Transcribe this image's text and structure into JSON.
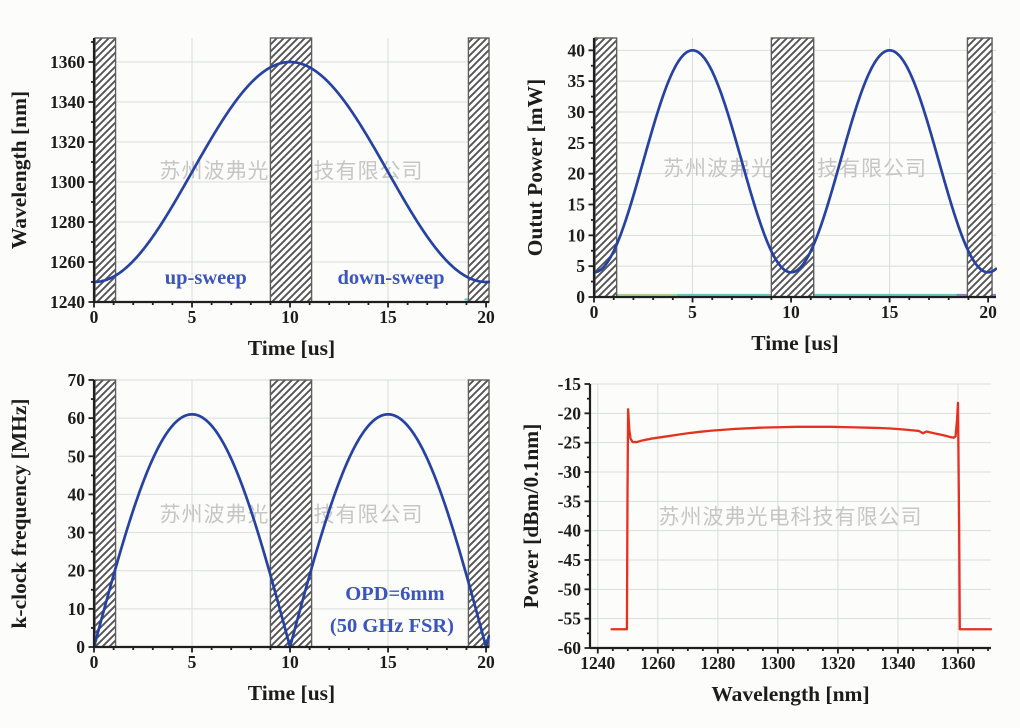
{
  "figure": {
    "background": "#fcfcfa",
    "watermark_text": "苏州波弗光电科技有限公司",
    "watermark_color": "#c6c6c6",
    "layout": "2x2 grid of line plots"
  },
  "colors": {
    "curve_blue": "#2642a2",
    "curve_red": "#e5311d",
    "annotation_blue": "#3a55c0",
    "grid": "#d9ded9",
    "axis": "#1f1f1f",
    "tick_text": "#1c1c1c",
    "hatch_line": "#555555",
    "hatch_border": "#5e5e5e",
    "baseline_teal": "#66c7c1",
    "baseline_purple": "#8f79d6",
    "baseline_yellow": "#e4df80",
    "baseline_green": "#a8d48e"
  },
  "chart_data": [
    {
      "id": "wavelength-vs-time",
      "type": "line",
      "title": "",
      "xlabel": "Time [us]",
      "ylabel": "Wavelength [nm]",
      "xlim": [
        0,
        20.15
      ],
      "ylim": [
        1240,
        1372
      ],
      "xticks": [
        0,
        5,
        10,
        15,
        20
      ],
      "yticks": [
        1240,
        1260,
        1280,
        1300,
        1320,
        1340,
        1360
      ],
      "x_minor_step": 1,
      "y_minor_step": 10,
      "grid": true,
      "watermark": true,
      "hatched_bands_x": [
        [
          0.05,
          1.1
        ],
        [
          9.0,
          11.1
        ],
        [
          19.1,
          20.15
        ]
      ],
      "series": [
        {
          "name": "swept wavelength",
          "color_key": "curve_blue",
          "width": 2.7,
          "model": {
            "kind": "cosine",
            "mean": 1305,
            "amplitude": -55,
            "period": 20
          },
          "start_nm": 1250,
          "peak_nm": 1360,
          "peak_at_us": 10,
          "end_nm": 1250
        }
      ],
      "annotations": [
        {
          "text": "up-sweep",
          "x": 5.7,
          "y": 1249,
          "color_key": "annotation_blue"
        },
        {
          "text": "down-sweep",
          "x": 15.15,
          "y": 1249,
          "color_key": "annotation_blue"
        }
      ],
      "extra_segments": [
        {
          "color_key": "baseline_green",
          "y": 1370.6,
          "x1": 9.0,
          "x2": 11.1
        },
        {
          "color_key": "baseline_teal",
          "y": 1241.3,
          "x1": 18.9,
          "x2": 20.15
        }
      ]
    },
    {
      "id": "output-power-vs-time",
      "type": "line",
      "title": "",
      "xlabel": "Time [us]",
      "ylabel": "Outut Power [mW]",
      "xlim": [
        0,
        20.4
      ],
      "ylim": [
        0,
        42
      ],
      "xticks": [
        0,
        5,
        10,
        15,
        20
      ],
      "yticks": [
        0,
        5,
        10,
        15,
        20,
        25,
        30,
        35,
        40
      ],
      "x_minor_step": 1,
      "y_minor_step": 2.5,
      "grid": true,
      "watermark": true,
      "hatched_bands_x": [
        [
          0.05,
          1.15
        ],
        [
          9.0,
          11.15
        ],
        [
          18.95,
          20.2
        ]
      ],
      "series": [
        {
          "name": "output power",
          "color_key": "curve_blue",
          "width": 2.7,
          "model": {
            "kind": "cosine",
            "mean": 22,
            "amplitude": -18,
            "period": 10
          },
          "min_mW": 4,
          "max_mW": 40,
          "peaks_at_us": [
            5,
            15
          ]
        }
      ],
      "annotations": [],
      "extra_segments": [
        {
          "color_key": "baseline_purple",
          "y": 0.35,
          "x1": 0.0,
          "x2": 1.2
        },
        {
          "color_key": "baseline_green",
          "y": 0.35,
          "x1": 1.2,
          "x2": 4.2
        },
        {
          "color_key": "baseline_teal",
          "y": 0.35,
          "x1": 4.2,
          "x2": 18.4
        },
        {
          "color_key": "baseline_purple",
          "y": 0.35,
          "x1": 18.4,
          "x2": 20.4
        }
      ]
    },
    {
      "id": "kclock-frequency-vs-time",
      "type": "line",
      "title": "",
      "xlabel": "Time [us]",
      "ylabel": "k-clock frequency [MHz]",
      "xlim": [
        0,
        20.15
      ],
      "ylim": [
        0,
        70
      ],
      "xticks": [
        0,
        5,
        10,
        15,
        20
      ],
      "yticks": [
        0,
        10,
        20,
        30,
        40,
        50,
        60,
        70
      ],
      "x_minor_step": 1,
      "y_minor_step": 5,
      "grid": true,
      "watermark": true,
      "hatched_bands_x": [
        [
          0.05,
          1.1
        ],
        [
          9.0,
          11.1
        ],
        [
          19.1,
          20.15
        ]
      ],
      "series": [
        {
          "name": "k-clock frequency",
          "color_key": "curve_blue",
          "width": 2.7,
          "model": {
            "kind": "abs_sine",
            "amplitude": 61,
            "period": 20
          },
          "peak_MHz": 61,
          "peaks_at_us": [
            5,
            15
          ],
          "zeros_at_us": [
            0,
            10,
            20
          ]
        }
      ],
      "annotations": [
        {
          "text": "OPD=6mm",
          "x": 15.35,
          "y": 12.3,
          "color_key": "annotation_blue"
        },
        {
          "text": "(50 GHz FSR)",
          "x": 15.2,
          "y": 3.9,
          "color_key": "annotation_blue"
        }
      ],
      "extra_segments": [
        {
          "color_key": "baseline_yellow",
          "y": 69.3,
          "x1": 0.05,
          "x2": 1.1
        },
        {
          "color_key": "baseline_yellow",
          "y": 69.3,
          "x1": 9.0,
          "x2": 11.1
        },
        {
          "color_key": "baseline_yellow",
          "y": 69.3,
          "x1": 19.1,
          "x2": 20.15
        }
      ]
    },
    {
      "id": "optical-spectrum",
      "type": "line",
      "title": "",
      "xlabel": "Wavelength [nm]",
      "ylabel": "Power [dBm/0.1nm]",
      "xlim": [
        1237.4,
        1371
      ],
      "ylim": [
        -60,
        -15
      ],
      "xticks": [
        1240,
        1260,
        1280,
        1300,
        1320,
        1340,
        1360
      ],
      "yticks": [
        -60,
        -55,
        -50,
        -45,
        -40,
        -35,
        -30,
        -25,
        -20,
        -15
      ],
      "x_minor_step": 5,
      "y_minor_step": 2.5,
      "grid": true,
      "watermark": true,
      "hatched_bands_x": [],
      "series": [
        {
          "name": "optical spectrum",
          "color_key": "curve_red",
          "width": 2.3,
          "points": [
            [
              1244.6,
              -56.8
            ],
            [
              1249.7,
              -56.8
            ],
            [
              1249.9,
              -33
            ],
            [
              1250.1,
              -19.3
            ],
            [
              1250.5,
              -22.8
            ],
            [
              1250.9,
              -24.3
            ],
            [
              1251.6,
              -24.9
            ],
            [
              1253,
              -24.9
            ],
            [
              1255,
              -24.6
            ],
            [
              1258,
              -24.3
            ],
            [
              1262,
              -24.0
            ],
            [
              1266,
              -23.7
            ],
            [
              1270,
              -23.4
            ],
            [
              1274,
              -23.15
            ],
            [
              1278,
              -22.95
            ],
            [
              1282,
              -22.8
            ],
            [
              1286,
              -22.65
            ],
            [
              1290,
              -22.55
            ],
            [
              1294,
              -22.45
            ],
            [
              1298,
              -22.4
            ],
            [
              1302,
              -22.35
            ],
            [
              1306,
              -22.3
            ],
            [
              1310,
              -22.3
            ],
            [
              1314,
              -22.3
            ],
            [
              1318,
              -22.3
            ],
            [
              1322,
              -22.35
            ],
            [
              1326,
              -22.4
            ],
            [
              1330,
              -22.45
            ],
            [
              1334,
              -22.5
            ],
            [
              1338,
              -22.6
            ],
            [
              1342,
              -22.75
            ],
            [
              1345,
              -22.9
            ],
            [
              1347,
              -23.0
            ],
            [
              1348.3,
              -23.4
            ],
            [
              1349.5,
              -23.1
            ],
            [
              1352,
              -23.4
            ],
            [
              1354,
              -23.6
            ],
            [
              1356,
              -23.85
            ],
            [
              1357.5,
              -24.05
            ],
            [
              1358.6,
              -24.15
            ],
            [
              1359.2,
              -23.9
            ],
            [
              1359.7,
              -21.0
            ],
            [
              1360.0,
              -18.2
            ],
            [
              1360.4,
              -40.0
            ],
            [
              1360.6,
              -56.8
            ],
            [
              1371.0,
              -56.8
            ]
          ],
          "sweep_range_nm": [
            1250,
            1360
          ],
          "plateau_dBm": -22.3,
          "edge_spikes_dBm": [
            -19.3,
            -18.2
          ],
          "noise_floor_dBm": -56.8
        }
      ],
      "annotations": [],
      "extra_segments": []
    }
  ]
}
